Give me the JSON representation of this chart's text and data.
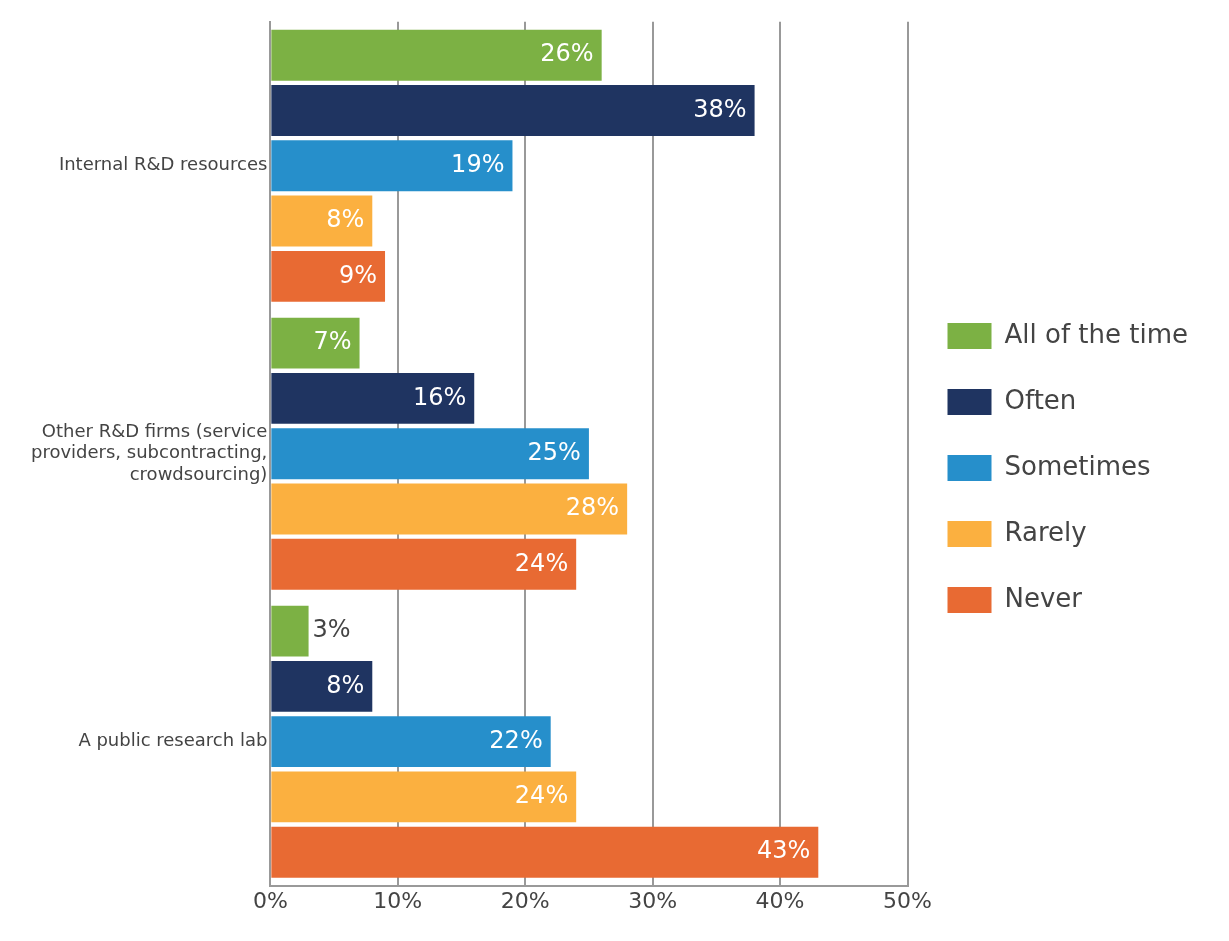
{
  "chart_data": {
    "type": "bar",
    "orientation": "horizontal",
    "categories": [
      "Internal R&D resources",
      "Other R&D firms (service providers, subcontracting, crowdsourcing)",
      "A public research lab"
    ],
    "series": [
      {
        "name": "All of the time",
        "color": "#7cb144",
        "values": [
          26,
          7,
          3
        ],
        "value_labels": [
          "26%",
          "7%",
          "3%"
        ]
      },
      {
        "name": "Often",
        "color": "#1f3461",
        "values": [
          38,
          16,
          8
        ],
        "value_labels": [
          "38%",
          "16%",
          "8%"
        ]
      },
      {
        "name": "Sometimes",
        "color": "#268fcb",
        "values": [
          19,
          25,
          22
        ],
        "value_labels": [
          "19%",
          "25%",
          "22%"
        ]
      },
      {
        "name": "Rarely",
        "color": "#fbb040",
        "values": [
          8,
          28,
          24
        ],
        "value_labels": [
          "8%",
          "28%",
          "24%"
        ]
      },
      {
        "name": "Never",
        "color": "#e86a33",
        "values": [
          9,
          24,
          43
        ],
        "value_labels": [
          "9%",
          "24%",
          "43%"
        ]
      }
    ],
    "xlim": [
      0,
      50
    ],
    "xticks": [
      {
        "value": 0,
        "label": "0%"
      },
      {
        "value": 10,
        "label": "10%"
      },
      {
        "value": 20,
        "label": "20%"
      },
      {
        "value": 30,
        "label": "30%"
      },
      {
        "value": 40,
        "label": "40%"
      },
      {
        "value": 50,
        "label": "50%"
      }
    ],
    "grid": "x",
    "legend": "right"
  }
}
